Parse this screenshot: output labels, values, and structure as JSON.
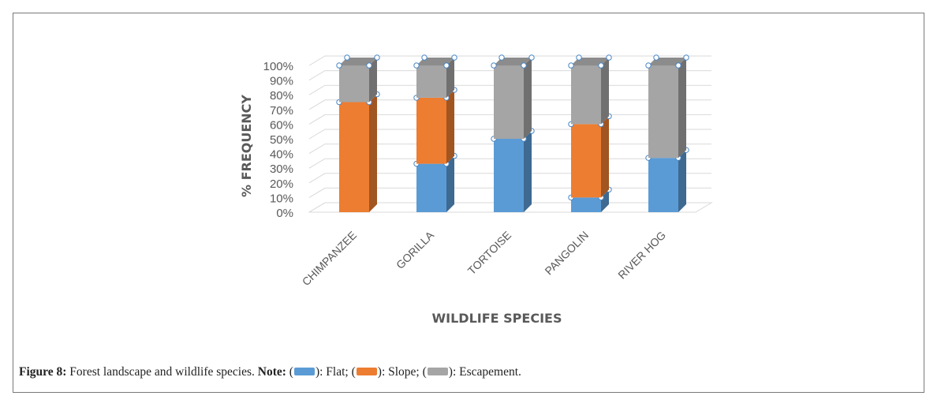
{
  "chart_data": {
    "type": "bar",
    "stacked": true,
    "style": "3d-stacked-column-100-percent",
    "categories": [
      "CHIMPANZEE",
      "GORILLA",
      "TORTOISE",
      "PANGOLIN",
      "RIVER HOG"
    ],
    "series": [
      {
        "name": "Flat",
        "color": "#5b9bd5",
        "values": [
          0,
          33,
          50,
          10,
          37
        ]
      },
      {
        "name": "Slope",
        "color": "#ed7d31",
        "values": [
          75,
          45,
          0,
          50,
          0
        ]
      },
      {
        "name": "Escapement",
        "color": "#a5a5a5",
        "values": [
          25,
          22,
          50,
          40,
          63
        ]
      }
    ],
    "xlabel": "WILDLIFE SPECIES",
    "ylabel": "% FREQUENCY",
    "ylim": [
      0,
      100
    ],
    "yticks": [
      "0%",
      "10%",
      "20%",
      "30%",
      "40%",
      "50%",
      "60%",
      "70%",
      "80%",
      "90%",
      "100%"
    ],
    "grid": true
  },
  "caption": {
    "figure_label": "Figure 8:",
    "text": " Forest landscape and wildlife species. ",
    "note_label": "Note:",
    "open": " (",
    "flat": "): Flat; (",
    "slope": "): Slope; (",
    "escapement": "): Escapement."
  }
}
